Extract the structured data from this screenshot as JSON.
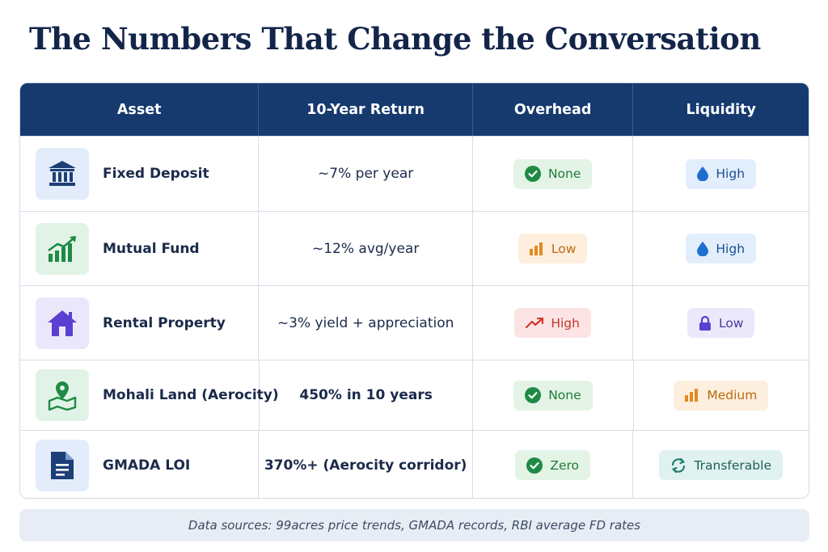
{
  "title": "The Numbers That Change the Conversation",
  "headers": [
    "Asset",
    "10-Year Return",
    "Overhead",
    "Liquidity"
  ],
  "rows": [
    {
      "asset": "Fixed Deposit",
      "asset_icon": "bank-icon",
      "return": "~7% per year",
      "return_bold": false,
      "overhead": {
        "label": "None",
        "icon": "check-circle-icon",
        "bg": "#e3f4e6",
        "fg": "#1f7a3a"
      },
      "liquidity": {
        "label": "High",
        "icon": "water-drop-icon",
        "bg": "#e2eefc",
        "fg": "#1d4f91"
      }
    },
    {
      "asset": "Mutual Fund",
      "asset_icon": "growth-chart-icon",
      "return": "~12% avg/year",
      "return_bold": false,
      "overhead": {
        "label": "Low",
        "icon": "bar-chart-icon",
        "bg": "#fdeedd",
        "fg": "#b86b13"
      },
      "liquidity": {
        "label": "High",
        "icon": "water-drop-icon",
        "bg": "#e2eefc",
        "fg": "#1d4f91"
      }
    },
    {
      "asset": "Rental Property",
      "asset_icon": "house-icon",
      "return": "~3% yield + appreciation",
      "return_bold": false,
      "overhead": {
        "label": "High",
        "icon": "trend-up-icon",
        "bg": "#fce4e4",
        "fg": "#c0392b"
      },
      "liquidity": {
        "label": "Low",
        "icon": "lock-icon",
        "bg": "#ece8fb",
        "fg": "#4b3a9a"
      }
    },
    {
      "asset": "Mohali Land (Aerocity)",
      "asset_icon": "map-pin-icon",
      "return": "450% in 10 years",
      "return_bold": true,
      "overhead": {
        "label": "None",
        "icon": "check-circle-icon",
        "bg": "#e3f4e6",
        "fg": "#1f7a3a"
      },
      "liquidity": {
        "label": "Medium",
        "icon": "bar-chart-icon",
        "bg": "#fdeedd",
        "fg": "#b86b13"
      }
    },
    {
      "asset": "GMADA LOI",
      "asset_icon": "document-icon",
      "return": "370%+ (Aerocity corridor)",
      "return_bold": true,
      "overhead": {
        "label": "Zero",
        "icon": "check-circle-icon",
        "bg": "#e3f4e6",
        "fg": "#1f7a3a"
      },
      "liquidity": {
        "label": "Transferable",
        "icon": "refresh-icon",
        "bg": "#e0f2ef",
        "fg": "#1f5f5a"
      }
    }
  ],
  "footer": "Data sources: 99acres price trends, GMADA records, RBI average FD rates",
  "colors": {
    "header_bg": "#163a6e",
    "title": "#14254a"
  }
}
